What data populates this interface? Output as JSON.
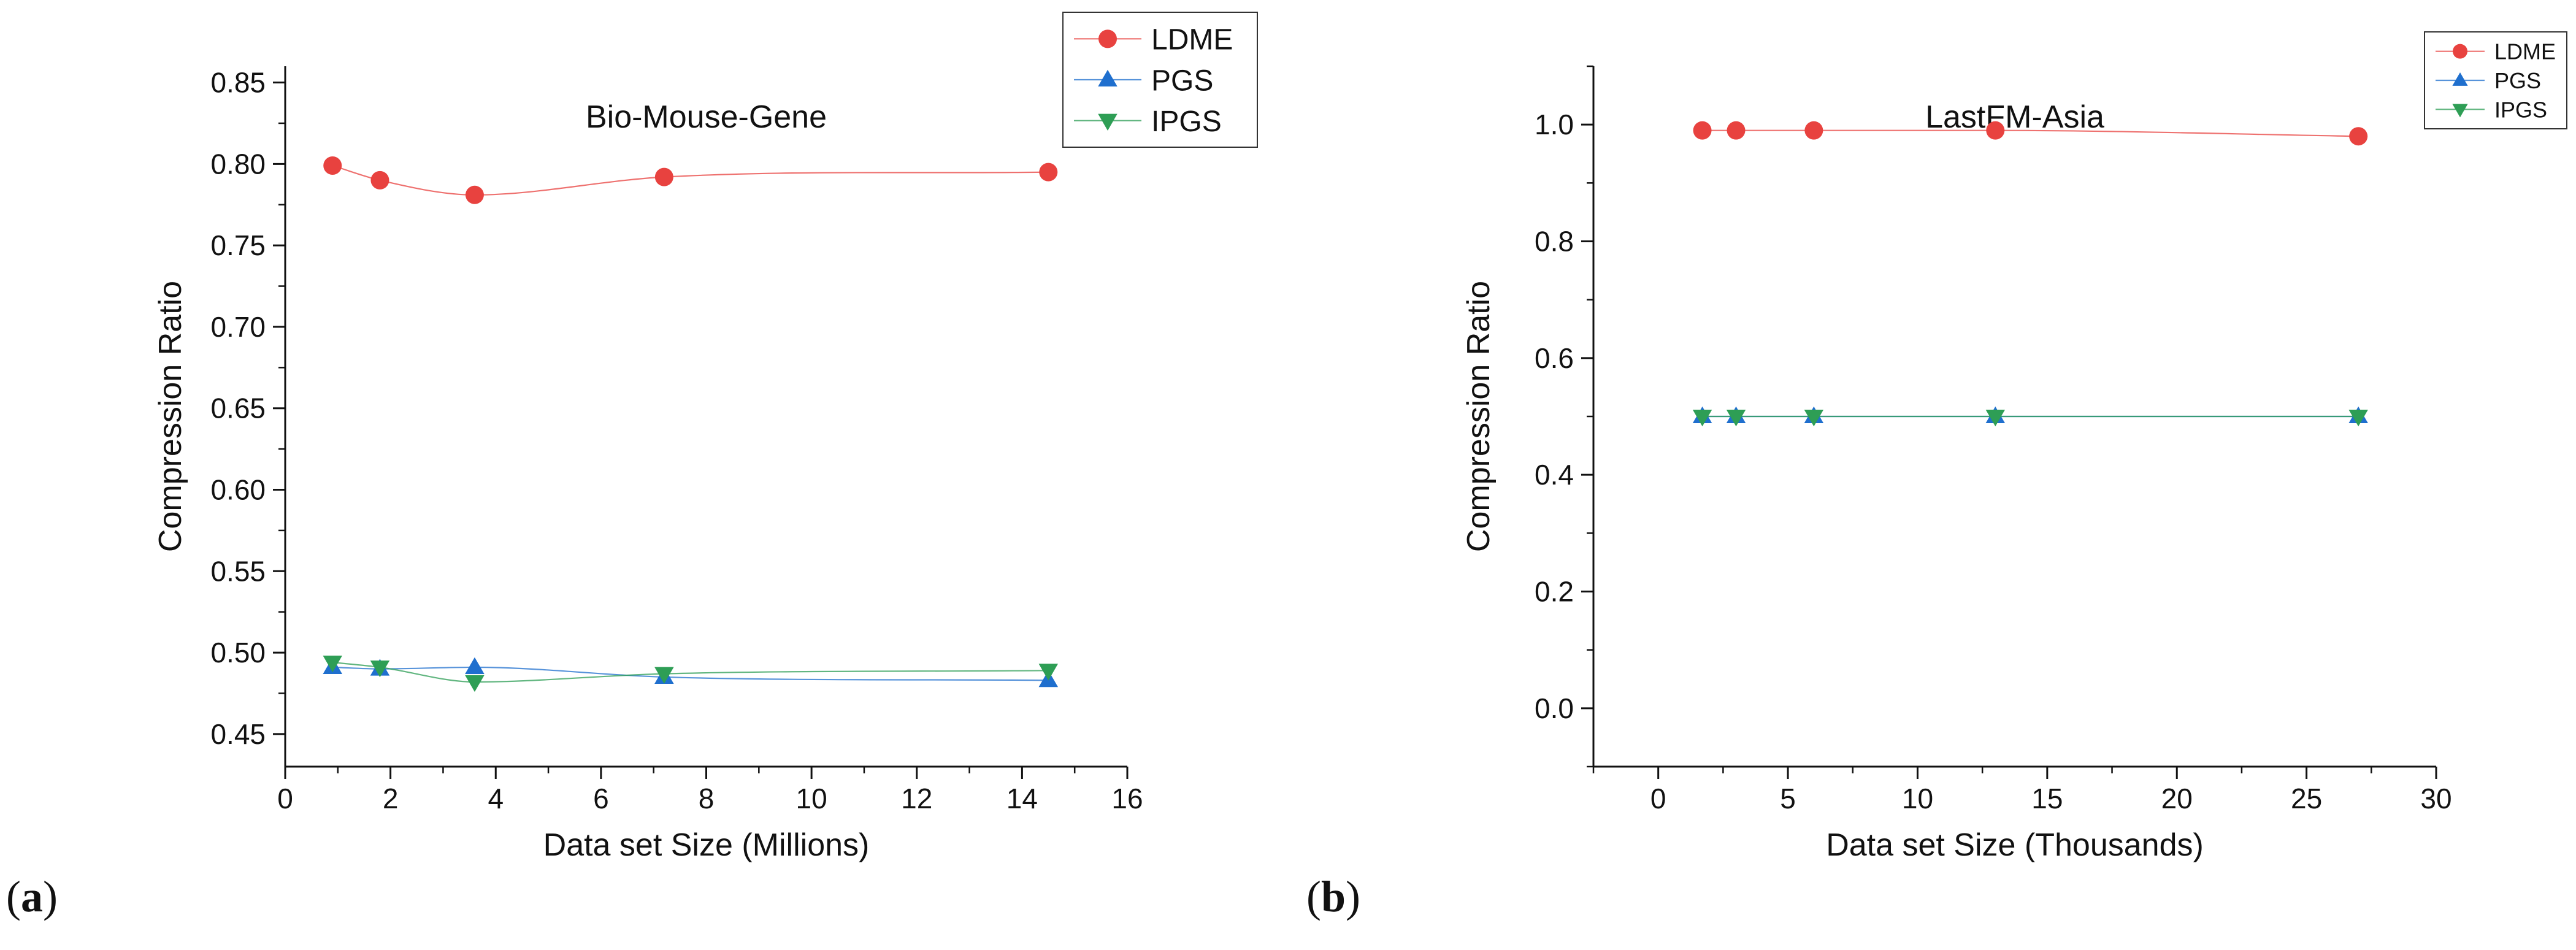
{
  "chart_data": [
    {
      "type": "line",
      "panel_label_open": "(",
      "panel_label_letter": "a",
      "panel_label_close": ")",
      "title": "Bio-Mouse-Gene",
      "xlabel": "Data set Size (Millions)",
      "ylabel": "Compression Ratio",
      "xlim": [
        0,
        16
      ],
      "ylim": [
        0.43,
        0.86
      ],
      "xticks": [
        0,
        2,
        4,
        6,
        8,
        10,
        12,
        14,
        16
      ],
      "yticks": [
        0.45,
        0.5,
        0.55,
        0.6,
        0.65,
        0.7,
        0.75,
        0.8,
        0.85
      ],
      "xtick_decimals": 0,
      "ytick_decimals": 2,
      "legend_position": "top-right",
      "series": [
        {
          "name": "LDME",
          "marker": "circle",
          "color": "#e8423f",
          "x": [
            0.9,
            1.8,
            3.6,
            7.2,
            14.5
          ],
          "y": [
            0.799,
            0.79,
            0.781,
            0.792,
            0.795
          ]
        },
        {
          "name": "PGS",
          "marker": "triangle-up",
          "color": "#1f6fce",
          "x": [
            0.9,
            1.8,
            3.6,
            7.2,
            14.5
          ],
          "y": [
            0.491,
            0.49,
            0.491,
            0.485,
            0.483
          ]
        },
        {
          "name": "IPGS",
          "marker": "triangle-down",
          "color": "#2e9e55",
          "x": [
            0.9,
            1.8,
            3.6,
            7.2,
            14.5
          ],
          "y": [
            0.494,
            0.491,
            0.482,
            0.487,
            0.489
          ]
        }
      ]
    },
    {
      "type": "line",
      "panel_label_open": "(",
      "panel_label_letter": "b",
      "panel_label_close": ")",
      "title": "LastFM-Asia",
      "xlabel": "Data set Size (Thousands)",
      "ylabel": "Compression Ratio",
      "xlim": [
        -2.5,
        30
      ],
      "ylim": [
        -0.1,
        1.1
      ],
      "xticks": [
        0,
        5,
        10,
        15,
        20,
        25,
        30
      ],
      "yticks": [
        0.0,
        0.2,
        0.4,
        0.6,
        0.8,
        1.0
      ],
      "xtick_decimals": 0,
      "ytick_decimals": 1,
      "legend_position": "top-right",
      "series": [
        {
          "name": "LDME",
          "marker": "circle",
          "color": "#e8423f",
          "x": [
            1.7,
            3.0,
            6.0,
            13.0,
            27.0
          ],
          "y": [
            0.99,
            0.99,
            0.99,
            0.99,
            0.98
          ]
        },
        {
          "name": "PGS",
          "marker": "triangle-up",
          "color": "#1f6fce",
          "x": [
            1.7,
            3.0,
            6.0,
            13.0,
            27.0
          ],
          "y": [
            0.5,
            0.5,
            0.5,
            0.5,
            0.5
          ]
        },
        {
          "name": "IPGS",
          "marker": "triangle-down",
          "color": "#2e9e55",
          "x": [
            1.7,
            3.0,
            6.0,
            13.0,
            27.0
          ],
          "y": [
            0.5,
            0.5,
            0.5,
            0.5,
            0.5
          ]
        }
      ]
    }
  ]
}
